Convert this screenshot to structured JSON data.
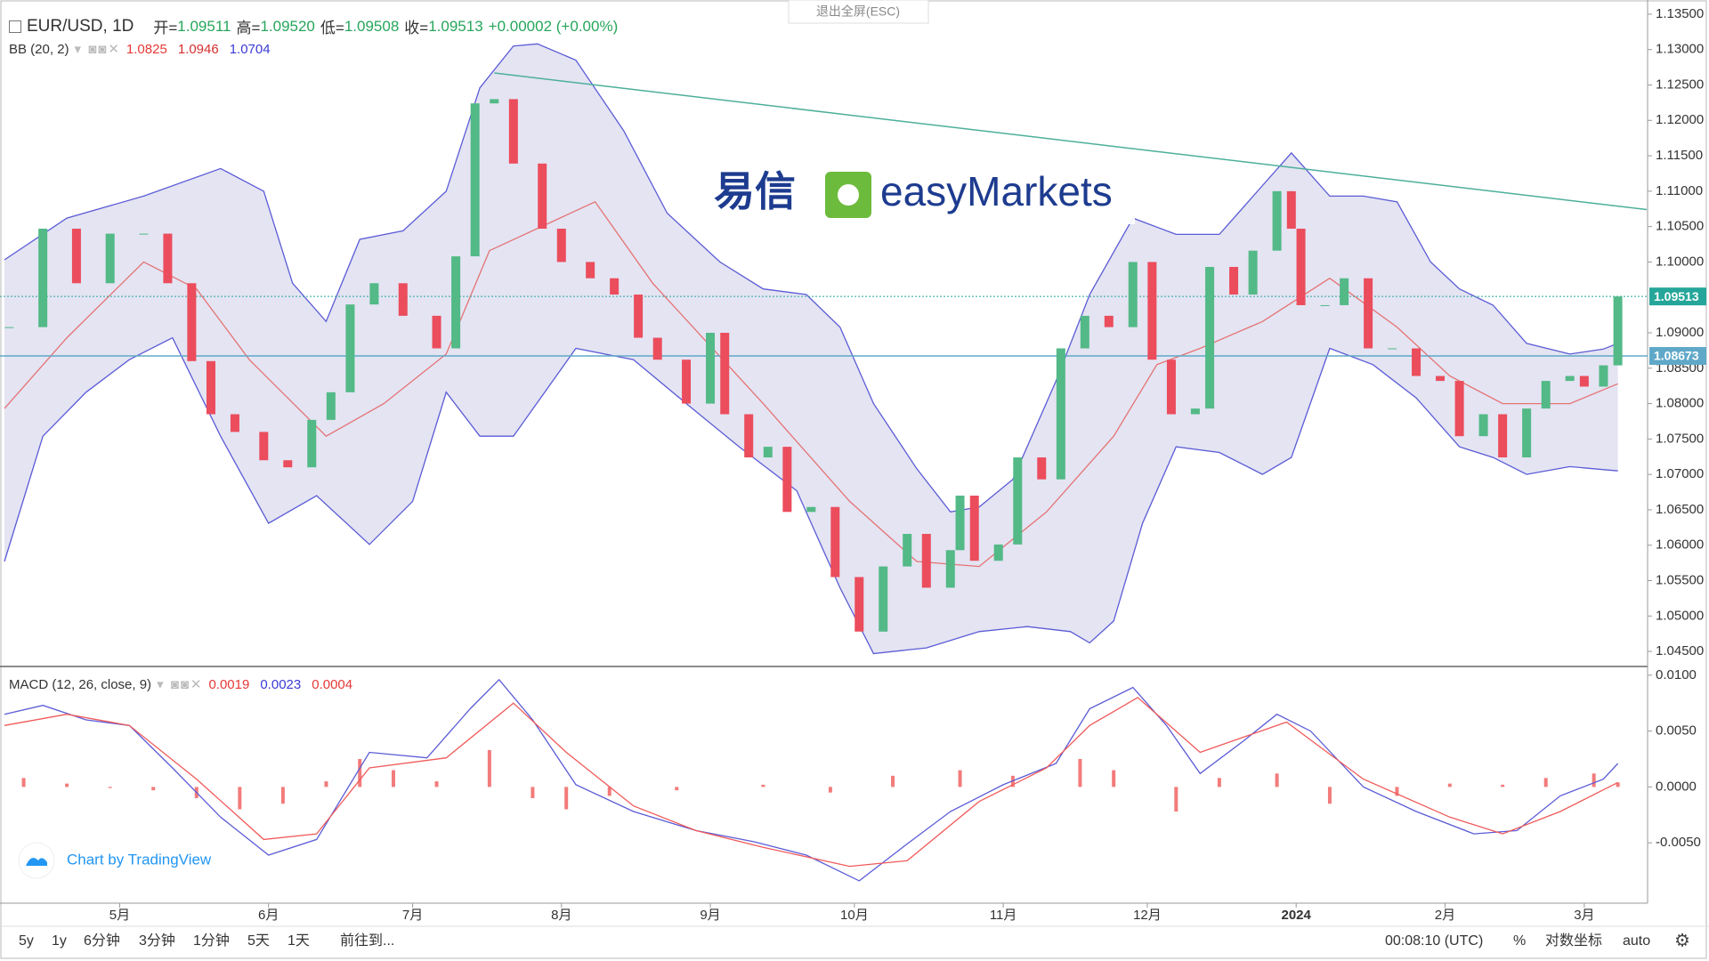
{
  "fullscreen_hint": "退出全屏(ESC)",
  "watermark": {
    "cn": "易信",
    "en": "easyMarkets"
  },
  "branding": "Chart by TradingView",
  "toolbar": {
    "left": [
      "5y",
      "1y",
      "6分钟",
      "3分钟",
      "1分钟",
      "5天",
      "1天",
      "前往到..."
    ],
    "time": "00:08:10 (UTC)",
    "right": [
      "%",
      "对数坐标",
      "auto"
    ]
  },
  "chart_data": [
    {
      "type": "candlestick",
      "symbol": "EUR/USD, 1D",
      "ohlc_legend": [
        {
          "label": "开=",
          "value": "1.09511"
        },
        {
          "label": "高=",
          "value": "1.09520"
        },
        {
          "label": "低=",
          "value": "1.09508"
        },
        {
          "label": "收=",
          "value": "1.09513"
        }
      ],
      "change": "+0.00002 (+0.00%)",
      "indicator": {
        "name": "BB (20, 2)",
        "values": [
          1.0825,
          1.0946,
          1.0704
        ],
        "colors": [
          "#e53935",
          "#d32f2f",
          "#3a3ad6"
        ]
      },
      "up_color": "#53b987",
      "down_color": "#eb4d5c",
      "x": [
        1,
        8,
        15,
        22,
        29,
        34,
        39,
        43,
        48,
        54,
        59,
        64,
        68,
        72,
        77,
        83,
        90,
        94,
        98,
        102,
        106,
        112,
        116,
        122,
        127,
        132,
        136,
        142,
        147,
        150,
        155,
        159,
        163,
        168,
        173,
        178,
        183,
        188,
        192,
        197,
        199,
        202,
        207,
        211,
        216,
        220,
        225,
        230,
        235,
        239,
        243,
        248,
        251,
        256,
        260,
        265,
        268,
        270,
        275,
        279,
        284,
        289,
        294,
        299,
        303,
        308,
        312,
        317,
        321,
        326,
        329,
        333,
        336
      ],
      "values": [
        1.0908,
        1.1047,
        1.097,
        1.104,
        1.104,
        1.097,
        1.086,
        1.0785,
        1.076,
        1.072,
        1.071,
        1.0777,
        1.0816,
        1.094,
        1.097,
        1.0924,
        1.0878,
        1.1008,
        1.1224,
        1.123,
        1.1139,
        1.1047,
        1.1,
        1.0977,
        1.0954,
        1.0893,
        1.0862,
        1.08,
        1.09,
        1.0785,
        1.0724,
        1.0739,
        1.0647,
        1.0654,
        1.0555,
        1.0478,
        1.057,
        1.0616,
        1.054,
        1.0593,
        1.067,
        1.0578,
        1.0601,
        1.0724,
        1.0693,
        1.0878,
        1.0924,
        1.0908,
        1.1,
        1.0862,
        1.0785,
        1.0793,
        1.0993,
        1.0954,
        1.1016,
        1.11,
        1.1047,
        1.0939,
        1.0939,
        1.0977,
        1.0878,
        1.0878,
        1.0839,
        1.0832,
        1.0754,
        1.0785,
        1.0724,
        1.0793,
        1.0832,
        1.0839,
        1.0824,
        1.0854,
        1.09513
      ],
      "bb_upper": {
        "color": "#5b5bd6",
        "x": [
          0,
          13,
          29,
          45,
          54,
          60,
          67,
          74,
          83,
          92,
          99,
          106,
          111,
          119,
          129,
          138,
          149,
          158,
          167,
          174,
          181,
          190,
          197,
          203,
          210,
          219,
          226,
          235,
          244,
          253,
          262,
          268,
          276,
          283,
          290,
          297,
          303,
          310,
          317,
          326,
          333,
          336
        ],
        "values": [
          1.1003,
          1.1062,
          1.1093,
          1.1132,
          1.11,
          1.097,
          1.0916,
          1.1032,
          1.1044,
          1.11,
          1.1246,
          1.1305,
          1.1308,
          1.1285,
          1.1185,
          1.1069,
          1.1,
          1.0962,
          1.0954,
          1.0908,
          1.08,
          1.0708,
          1.0647,
          1.0654,
          1.0693,
          1.0832,
          1.0954,
          1.1062,
          1.1039,
          1.1039,
          1.1108,
          1.1154,
          1.1093,
          1.1093,
          1.1085,
          1.1,
          1.0962,
          1.0939,
          1.0885,
          1.087,
          1.0877,
          1.0885
        ]
      },
      "bb_lower": {
        "color": "#5b5bd6",
        "x": [
          0,
          8,
          17,
          26,
          35,
          45,
          55,
          65,
          76,
          85,
          92,
          99,
          106,
          119,
          131,
          142,
          153,
          165,
          174,
          181,
          192,
          203,
          213,
          222,
          226,
          231,
          237,
          244,
          253,
          262,
          268,
          276,
          285,
          294,
          303,
          310,
          317,
          326,
          336
        ],
        "values": [
          1.0577,
          1.0754,
          1.0816,
          1.0862,
          1.0893,
          1.0754,
          1.0631,
          1.067,
          1.0601,
          1.0662,
          1.0816,
          1.0754,
          1.0754,
          1.0878,
          1.0862,
          1.08,
          1.0739,
          1.0677,
          1.054,
          1.0447,
          1.0455,
          1.0478,
          1.0485,
          1.0478,
          1.0462,
          1.0493,
          1.0631,
          1.0739,
          1.0731,
          1.07,
          1.0724,
          1.0878,
          1.0855,
          1.0808,
          1.0739,
          1.0724,
          1.07,
          1.0711,
          1.0705
        ]
      },
      "bb_fill": "#e4e4f3",
      "bb_middle": {
        "color": "#e57373",
        "x": [
          0,
          13,
          29,
          40,
          51,
          67,
          79,
          92,
          101,
          123,
          135,
          158,
          176,
          190,
          203,
          217,
          231,
          240,
          249,
          262,
          276,
          290,
          301,
          312,
          326,
          336
        ],
        "values": [
          1.0793,
          1.0893,
          1.1,
          1.0962,
          1.0862,
          1.0754,
          1.08,
          1.087,
          1.1016,
          1.1085,
          1.097,
          1.08,
          1.0662,
          1.0577,
          1.057,
          1.0647,
          1.0754,
          1.0855,
          1.0878,
          1.0916,
          1.0977,
          1.0908,
          1.0839,
          1.08,
          1.08,
          1.0828
        ]
      },
      "trend_line": {
        "color": "#4caf9a",
        "x": [
          102,
          342
        ],
        "values": [
          1.1267,
          1.1074
        ]
      },
      "price_lines": [
        {
          "value": 1.09513,
          "color": "#26a69a"
        },
        {
          "value": 1.08673,
          "color": "#5fa8c8"
        }
      ],
      "xlim": [
        0,
        342
      ],
      "xticks": [
        {
          "value": 24,
          "label": "5月"
        },
        {
          "value": 55,
          "label": "6月"
        },
        {
          "value": 85,
          "label": "7月"
        },
        {
          "value": 116,
          "label": "8月"
        },
        {
          "value": 147,
          "label": "9月"
        },
        {
          "value": 177,
          "label": "10月"
        },
        {
          "value": 208,
          "label": "11月"
        },
        {
          "value": 238,
          "label": "12月"
        },
        {
          "value": 269,
          "label": "2024"
        },
        {
          "value": 300,
          "label": "2月"
        },
        {
          "value": 329,
          "label": "3月"
        }
      ],
      "ylim": [
        1.043,
        1.137
      ],
      "yticks": [
        {
          "value": 1.135,
          "label": "1.13500"
        },
        {
          "value": 1.13,
          "label": "1.13000"
        },
        {
          "value": 1.125,
          "label": "1.12500"
        },
        {
          "value": 1.12,
          "label": "1.12000"
        },
        {
          "value": 1.115,
          "label": "1.11500"
        },
        {
          "value": 1.11,
          "label": "1.11000"
        },
        {
          "value": 1.105,
          "label": "1.10500"
        },
        {
          "value": 1.1,
          "label": "1.10000"
        },
        {
          "value": 1.09,
          "label": "1.09000"
        },
        {
          "value": 1.085,
          "label": "1.08500"
        },
        {
          "value": 1.08,
          "label": "1.08000"
        },
        {
          "value": 1.075,
          "label": "1.07500"
        },
        {
          "value": 1.07,
          "label": "1.07000"
        },
        {
          "value": 1.065,
          "label": "1.06500"
        },
        {
          "value": 1.06,
          "label": "1.06000"
        },
        {
          "value": 1.055,
          "label": "1.05500"
        },
        {
          "value": 1.05,
          "label": "1.05000"
        },
        {
          "value": 1.045,
          "label": "1.04500"
        }
      ],
      "grid": false
    },
    {
      "type": "line",
      "title": "MACD (12, 26, close, 9)",
      "legend_values": [
        0.0019,
        0.0023,
        0.0004
      ],
      "legend_colors": [
        "#e53935",
        "#3a3ad6",
        "#e53935"
      ],
      "series": [
        {
          "color": "#5b5bd6",
          "x": [
            0,
            8,
            17,
            26,
            35,
            45,
            55,
            65,
            76,
            88,
            97,
            103,
            110,
            119,
            131,
            144,
            156,
            167,
            178,
            188,
            197,
            208,
            219,
            226,
            235,
            242,
            249,
            258,
            265,
            272,
            283,
            294,
            306,
            315,
            324,
            333,
            336
          ],
          "values": [
            0.0065,
            0.0073,
            0.006,
            0.0055,
            0.0017,
            -0.0027,
            -0.0061,
            -0.0047,
            0.0031,
            0.0026,
            0.007,
            0.0096,
            0.006,
            0.0002,
            -0.0022,
            -0.0039,
            -0.0049,
            -0.0061,
            -0.0084,
            -0.0051,
            -0.0022,
            0.0002,
            0.0021,
            0.007,
            0.0089,
            0.0055,
            0.0012,
            0.0041,
            0.0065,
            0.005,
            0,
            -0.0022,
            -0.0042,
            -0.0039,
            -0.0008,
            0.0007,
            0.0021
          ]
        },
        {
          "color": "#f05a5a",
          "x": [
            0,
            13,
            26,
            40,
            54,
            65,
            76,
            92,
            106,
            117,
            131,
            144,
            158,
            176,
            188,
            203,
            217,
            226,
            236,
            249,
            267,
            283,
            301,
            312,
            324,
            336
          ],
          "values": [
            0.0055,
            0.0065,
            0.0055,
            0.0007,
            -0.0047,
            -0.0042,
            0.0017,
            0.0026,
            0.0075,
            0.0031,
            -0.0017,
            -0.0039,
            -0.0054,
            -0.0071,
            -0.0066,
            -0.0013,
            0.0017,
            0.0055,
            0.008,
            0.0031,
            0.0058,
            0.0007,
            -0.0027,
            -0.0042,
            -0.0022,
            0.0004
          ]
        }
      ],
      "histogram": {
        "color": "#f05a5a",
        "x": [
          4,
          13,
          22,
          31,
          40,
          49,
          58,
          67,
          74,
          81,
          90,
          101,
          110,
          117,
          126,
          140,
          158,
          172,
          185,
          199,
          210,
          224,
          231,
          244,
          253,
          265,
          276,
          290,
          301,
          312,
          321,
          331,
          336
        ],
        "values": [
          0.0008,
          0.0003,
          -0.0001,
          -0.0003,
          -0.001,
          -0.002,
          -0.0015,
          0.0005,
          0.0025,
          0.0015,
          0.0005,
          0.0033,
          -0.001,
          -0.002,
          -0.0008,
          -0.0003,
          0.0002,
          -0.0005,
          0.001,
          0.0015,
          0.001,
          0.0025,
          0.0015,
          -0.0022,
          0.0008,
          0.0012,
          -0.0015,
          -0.0008,
          0.0003,
          0.0002,
          0.0008,
          0.0012,
          0.0004
        ]
      },
      "ylim": [
        -0.0104,
        0.0107
      ],
      "yticks": [
        {
          "value": 0.01,
          "label": "0.0100"
        },
        {
          "value": 0.005,
          "label": "0.0050"
        },
        {
          "value": 0,
          "label": "0.0000"
        },
        {
          "value": -0.005,
          "label": "-0.0050"
        }
      ]
    }
  ]
}
